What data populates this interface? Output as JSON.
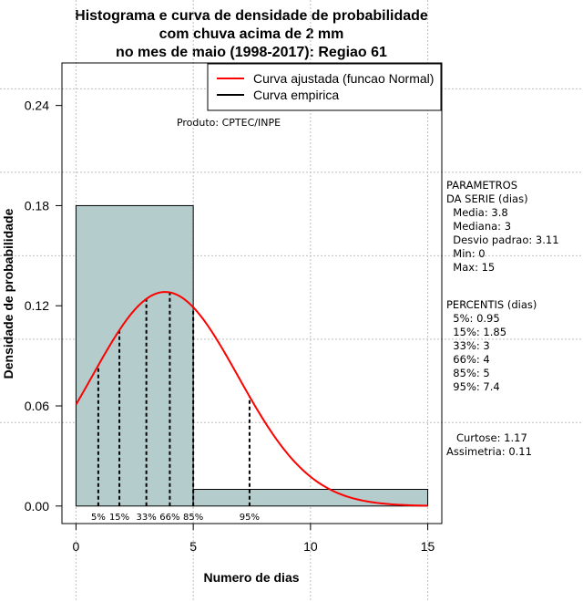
{
  "chart_data": {
    "type": "bar",
    "title_lines": [
      "Histograma e curva de densidade de probabilidade",
      "com chuva acima de 2 mm",
      "no mes de maio (1998-2017): Regiao 61"
    ],
    "xlabel": "Numero de dias",
    "ylabel": "Densidade de probabilidade",
    "xlim": [
      -0.6,
      15.6
    ],
    "ylim": [
      -0.0105,
      0.2655
    ],
    "x_ticks": [
      "0",
      "5",
      "10",
      "15"
    ],
    "x_tick_values": [
      0,
      5,
      10,
      15
    ],
    "y_ticks": [
      "0.00",
      "0.06",
      "0.12",
      "0.18",
      "0.24"
    ],
    "y_tick_values": [
      0,
      0.06,
      0.12,
      0.18,
      0.24
    ],
    "histogram_bins": [
      {
        "from": 0,
        "to": 5,
        "density": 0.18
      },
      {
        "from": 5,
        "to": 15,
        "density": 0.01
      }
    ],
    "normal_curve": {
      "mean": 3.8,
      "sd": 3.11,
      "x_from": 0,
      "x_to": 15
    },
    "percentiles": [
      {
        "label": "5%",
        "value": 0.95
      },
      {
        "label": "15%",
        "value": 1.85
      },
      {
        "label": "33%",
        "value": 3
      },
      {
        "label": "66%",
        "value": 4
      },
      {
        "label": "85%",
        "value": 5
      },
      {
        "label": "95%",
        "value": 7.4
      }
    ],
    "legend": [
      {
        "label": "Curva ajustada (funcao Normal)",
        "color": "#ff0000"
      },
      {
        "label": "Curva empirica",
        "color": "#000000"
      }
    ],
    "legend_position": "top-right",
    "annotation": "Produto: CPTEC/INPE",
    "grid": true,
    "colors": {
      "bar_fill": "#b5cccc",
      "curve": "#ff0000",
      "grid": "#bebebe"
    }
  },
  "side_panel": {
    "params_lines": [
      "PARAMETROS",
      "DA SERIE (dias)",
      "  Media: 3.8",
      "  Mediana: 3",
      "  Desvio padrao: 3.11",
      "  Min: 0",
      "  Max: 15"
    ],
    "percentis_lines": [
      "PERCENTIS (dias)",
      "  5%: 0.95",
      "  15%: 1.85",
      "  33%: 3",
      "  66%: 4",
      "  85%: 5",
      "  95%: 7.4"
    ],
    "stats_lines": [
      "   Curtose: 1.17",
      "Assimetria: 0.11"
    ]
  }
}
